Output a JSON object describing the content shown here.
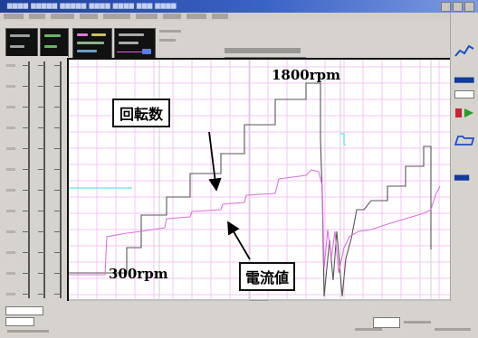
{
  "chart_frame": {
    "annotations": {
      "rotation_label": "回転数",
      "current_label": "電流値",
      "rpm_max": "1800rpm",
      "rpm_min": "300rpm"
    }
  },
  "colors": {
    "rotation_trace": "#555555",
    "current_trace": "#e070e0",
    "cyan_trace": "#40d8e8",
    "grid_minor": "#f4c6f4",
    "grid_major": "#cfcfcf"
  },
  "icons": {
    "right_panel": [
      "line-chart-icon",
      "folder-icon",
      "record-icon",
      "export-icon"
    ]
  }
}
